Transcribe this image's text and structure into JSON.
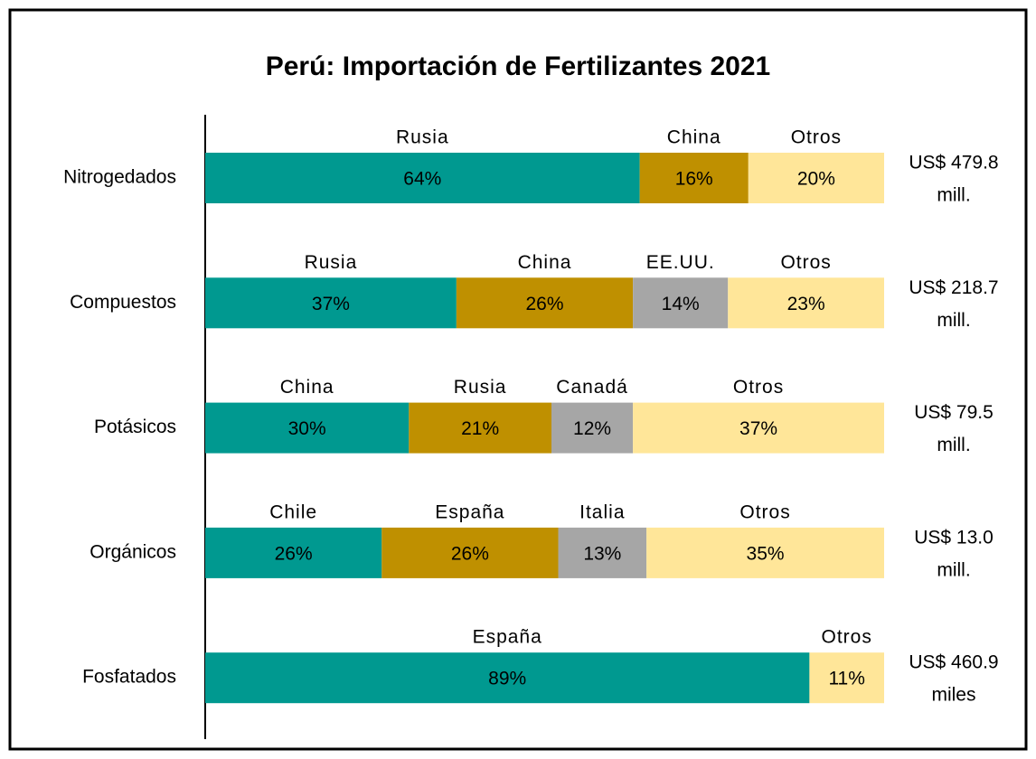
{
  "chart_data": {
    "type": "stacked_bar_100",
    "title": "Perú: Importación de Fertilizantes 2021",
    "categories": [
      "Nitrogedados",
      "Compuestos",
      "Potásicos",
      "Orgánicos",
      "Fosfatados"
    ],
    "xlim": [
      0,
      100
    ],
    "bars": [
      {
        "segments": [
          {
            "name": "Rusia",
            "value": 64,
            "value_label": "64%",
            "color": "#009990"
          },
          {
            "name": "China",
            "value": 16,
            "value_label": "16%",
            "color": "#bf9000"
          },
          {
            "name": "Otros",
            "value": 20,
            "value_label": "20%",
            "color": "#ffe699"
          }
        ],
        "total": [
          "US$ 479.8",
          "mill."
        ]
      },
      {
        "segments": [
          {
            "name": "Rusia",
            "value": 37,
            "value_label": "37%",
            "color": "#009990"
          },
          {
            "name": "China",
            "value": 26,
            "value_label": "26%",
            "color": "#bf9000"
          },
          {
            "name": "EE.UU.",
            "value": 14,
            "value_label": "14%",
            "color": "#a6a6a6"
          },
          {
            "name": "Otros",
            "value": 23,
            "value_label": "23%",
            "color": "#ffe699"
          }
        ],
        "total": [
          "US$ 218.7",
          "mill."
        ]
      },
      {
        "segments": [
          {
            "name": "China",
            "value": 30,
            "value_label": "30%",
            "color": "#009990"
          },
          {
            "name": "Rusia",
            "value": 21,
            "value_label": "21%",
            "color": "#bf9000"
          },
          {
            "name": "Canadá",
            "value": 12,
            "value_label": "12%",
            "color": "#a6a6a6"
          },
          {
            "name": "Otros",
            "value": 37,
            "value_label": "37%",
            "color": "#ffe699"
          }
        ],
        "total": [
          "US$ 79.5",
          "mill."
        ]
      },
      {
        "segments": [
          {
            "name": "Chile",
            "value": 26,
            "value_label": "26%",
            "color": "#009990"
          },
          {
            "name": "España",
            "value": 26,
            "value_label": "26%",
            "color": "#bf9000"
          },
          {
            "name": "Italia",
            "value": 13,
            "value_label": "13%",
            "color": "#a6a6a6"
          },
          {
            "name": "Otros",
            "value": 35,
            "value_label": "35%",
            "color": "#ffe699"
          }
        ],
        "total": [
          "US$ 13.0",
          "mill."
        ]
      },
      {
        "segments": [
          {
            "name": "España",
            "value": 89,
            "value_label": "89%",
            "color": "#009990"
          },
          {
            "name": "Otros",
            "value": 11,
            "value_label": "11%",
            "color": "#ffe699"
          }
        ],
        "total": [
          "US$ 460.9",
          "miles"
        ]
      }
    ]
  }
}
